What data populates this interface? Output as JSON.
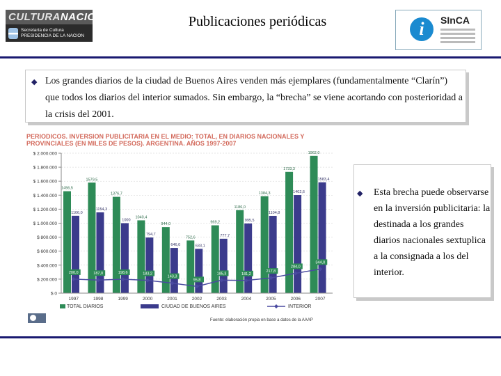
{
  "header": {
    "title": "Publicaciones periódicas",
    "left_logo": {
      "name_part1": "CULTURA",
      "name_part2": "NACION",
      "line1": "Secretaría de Cultura",
      "line2": "PRESIDENCIA DE LA NACION"
    },
    "right_logo": {
      "icon": "info-icon",
      "name": "SInCA"
    }
  },
  "bullet1": "Los grandes diarios de la ciudad de Buenos Aires venden más ejemplares (fundamentalmente “Clarín”) que todos los diarios del interior sumados. Sin embargo, la “brecha” se viene acortando con posterioridad a la crisis del 2001.",
  "bullet2": "Esta brecha puede observarse en la inversión publicitaria: la destinada a los grandes diarios nacionales sextuplica a la consignada a los del interior.",
  "chart_data": {
    "type": "bar",
    "title": "PERIODICOS. INVERSION PUBLICITARIA EN EL MEDIO: TOTAL, EN DIARIOS NACIONALES Y PROVINCIALES (EN MILES DE PESOS). ARGENTINA. AÑOS 1997-2007",
    "categories": [
      "1997",
      "1998",
      "1999",
      "2000",
      "2001",
      "2002",
      "2003",
      "2004",
      "2005",
      "2006",
      "2007"
    ],
    "y_ticks": [
      "$ 0",
      "$ 200.000",
      "$ 400.000",
      "$ 600.000",
      "$ 800.000",
      "$ 1.000.000",
      "$ 1.200.000",
      "$ 1.400.000",
      "$ 1.600.000",
      "$ 1.800.000",
      "$ 2.000.000"
    ],
    "ylim": [
      0,
      2000000
    ],
    "series": [
      {
        "name": "TOTAL DIARIOS",
        "type": "bar",
        "values": [
          1456500,
          1579500,
          1376700,
          1040400,
          944000,
          752600,
          969200,
          1186000,
          1384300,
          1733300,
          1962000
        ],
        "labels": [
          "1456,5",
          "1579,5",
          "1376,7",
          "1040,4",
          "944,0",
          "752,6",
          "969,2",
          "1186,0",
          "1384,3",
          "1733,3",
          "1962,0"
        ]
      },
      {
        "name": "CIUDAD DE BUENOS AIRES",
        "type": "bar",
        "values": [
          1106000,
          1154300,
          1000000,
          794700,
          646000,
          633100,
          777700,
          995500,
          1104800,
          1402600,
          1583400
        ],
        "labels": [
          "1106,0",
          "1154,3",
          "1000",
          "794,7",
          "646,0",
          "633,1",
          "777,7",
          "995,5",
          "1104,8",
          "1402,6",
          "1583,4"
        ]
      },
      {
        "name": "INTERIOR",
        "type": "line",
        "values": [
          200000,
          187000,
          198600,
          183200,
          143300,
          95800,
          185300,
          181200,
          217800,
          284000,
          344000
        ],
        "labels": [
          "200,0",
          "187,0",
          "198,6",
          "183,2",
          "143,3",
          "95,8",
          "185,3",
          "181,2",
          "217,8",
          "284,0",
          "344,0"
        ]
      }
    ],
    "colors": {
      "total": "#2e8b57",
      "ciudad": "#3b3b8c",
      "interior": "#4a4aa0",
      "axis": "#888888",
      "grid": "#cccccc"
    },
    "legend_position": "bottom",
    "source": "Fuente: elaboración propia en base a datos de la AAAP"
  }
}
